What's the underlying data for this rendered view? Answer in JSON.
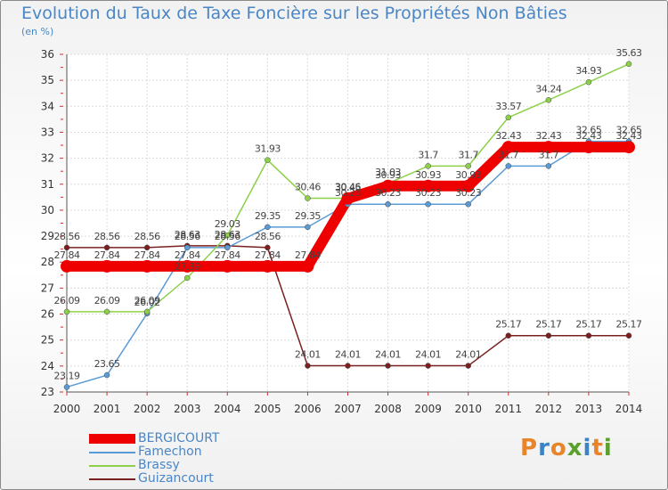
{
  "header": {
    "title": "Evolution du Taux de Taxe Foncière sur les Propriétés Non Bâties",
    "unit": "(en %)"
  },
  "brand": {
    "logo_letters": [
      "P",
      "r",
      "o",
      "x",
      "i",
      "t",
      "i"
    ],
    "logo_colors": [
      "#e8842a",
      "#3b83c4",
      "#e8842a",
      "#5aa02c",
      "#3b83c4",
      "#e8842a",
      "#5aa02c"
    ]
  },
  "chart_data": {
    "type": "line",
    "title": "Evolution du Taux de Taxe Foncière sur les Propriétés Non Bâties",
    "ylabel": "(en %)",
    "xlabel": "",
    "x": [
      "2000",
      "2001",
      "2002",
      "2003",
      "2004",
      "2005",
      "2006",
      "2007",
      "2008",
      "2009",
      "2010",
      "2011",
      "2012",
      "2013",
      "2014"
    ],
    "ylim": [
      23,
      36
    ],
    "yticks": [
      "23",
      "24",
      "25",
      "26",
      "27",
      "28",
      "29",
      "30",
      "31",
      "32",
      "33",
      "34",
      "35",
      "36"
    ],
    "grid": true,
    "legend_position": "bottom-left",
    "series": [
      {
        "name": "BERGICOURT",
        "color": "#ee0000",
        "values": [
          27.84,
          27.84,
          27.84,
          27.84,
          27.84,
          27.84,
          27.84,
          30.45,
          30.93,
          30.93,
          30.93,
          32.43,
          32.43,
          32.43,
          32.43
        ],
        "labels": [
          "27.84",
          "27.84",
          "27.84",
          "27.84",
          "27.84",
          "27.84",
          "27.84",
          "30.45",
          "30.93",
          "30.93",
          "30.93",
          "32.43",
          "32.43",
          "32.43",
          "32.43"
        ]
      },
      {
        "name": "Famechon",
        "color": "#5b9bd5",
        "values": [
          23.19,
          23.65,
          26.02,
          28.56,
          28.56,
          29.35,
          29.35,
          30.23,
          30.23,
          30.23,
          30.23,
          31.7,
          31.7,
          32.65,
          32.65
        ],
        "labels": [
          "23.19",
          "23.65",
          "26.02",
          "28.56",
          "28.56",
          "29.35",
          "29.35",
          "30.23",
          "30.23",
          "30.23",
          "30.23",
          "31.7",
          "31.7",
          "32.65",
          "32.65"
        ]
      },
      {
        "name": "Brassy",
        "color": "#8cd04a",
        "values": [
          26.09,
          26.09,
          26.09,
          27.39,
          29.03,
          31.93,
          30.46,
          30.46,
          31.03,
          31.7,
          31.7,
          33.57,
          34.24,
          34.93,
          35.63
        ],
        "labels": [
          "26.09",
          "26.09",
          "26.09",
          "27.39",
          "29.03",
          "31.93",
          "30.46",
          "30.46",
          "31.03",
          "31.7",
          "31.7",
          "33.57",
          "34.24",
          "34.93",
          "35.63"
        ]
      },
      {
        "name": "Guizancourt",
        "color": "#7a2020",
        "values": [
          28.56,
          28.56,
          28.56,
          28.63,
          28.63,
          28.56,
          24.01,
          24.01,
          24.01,
          24.01,
          24.01,
          25.17,
          25.17,
          25.17,
          25.17
        ],
        "labels": [
          "28.56",
          "28.56",
          "28.56",
          "28.63",
          "28.63",
          "28.56",
          "24.01",
          "24.01",
          "24.01",
          "24.01",
          "24.01",
          "25.17",
          "25.17",
          "25.17",
          "25.17"
        ]
      }
    ]
  }
}
